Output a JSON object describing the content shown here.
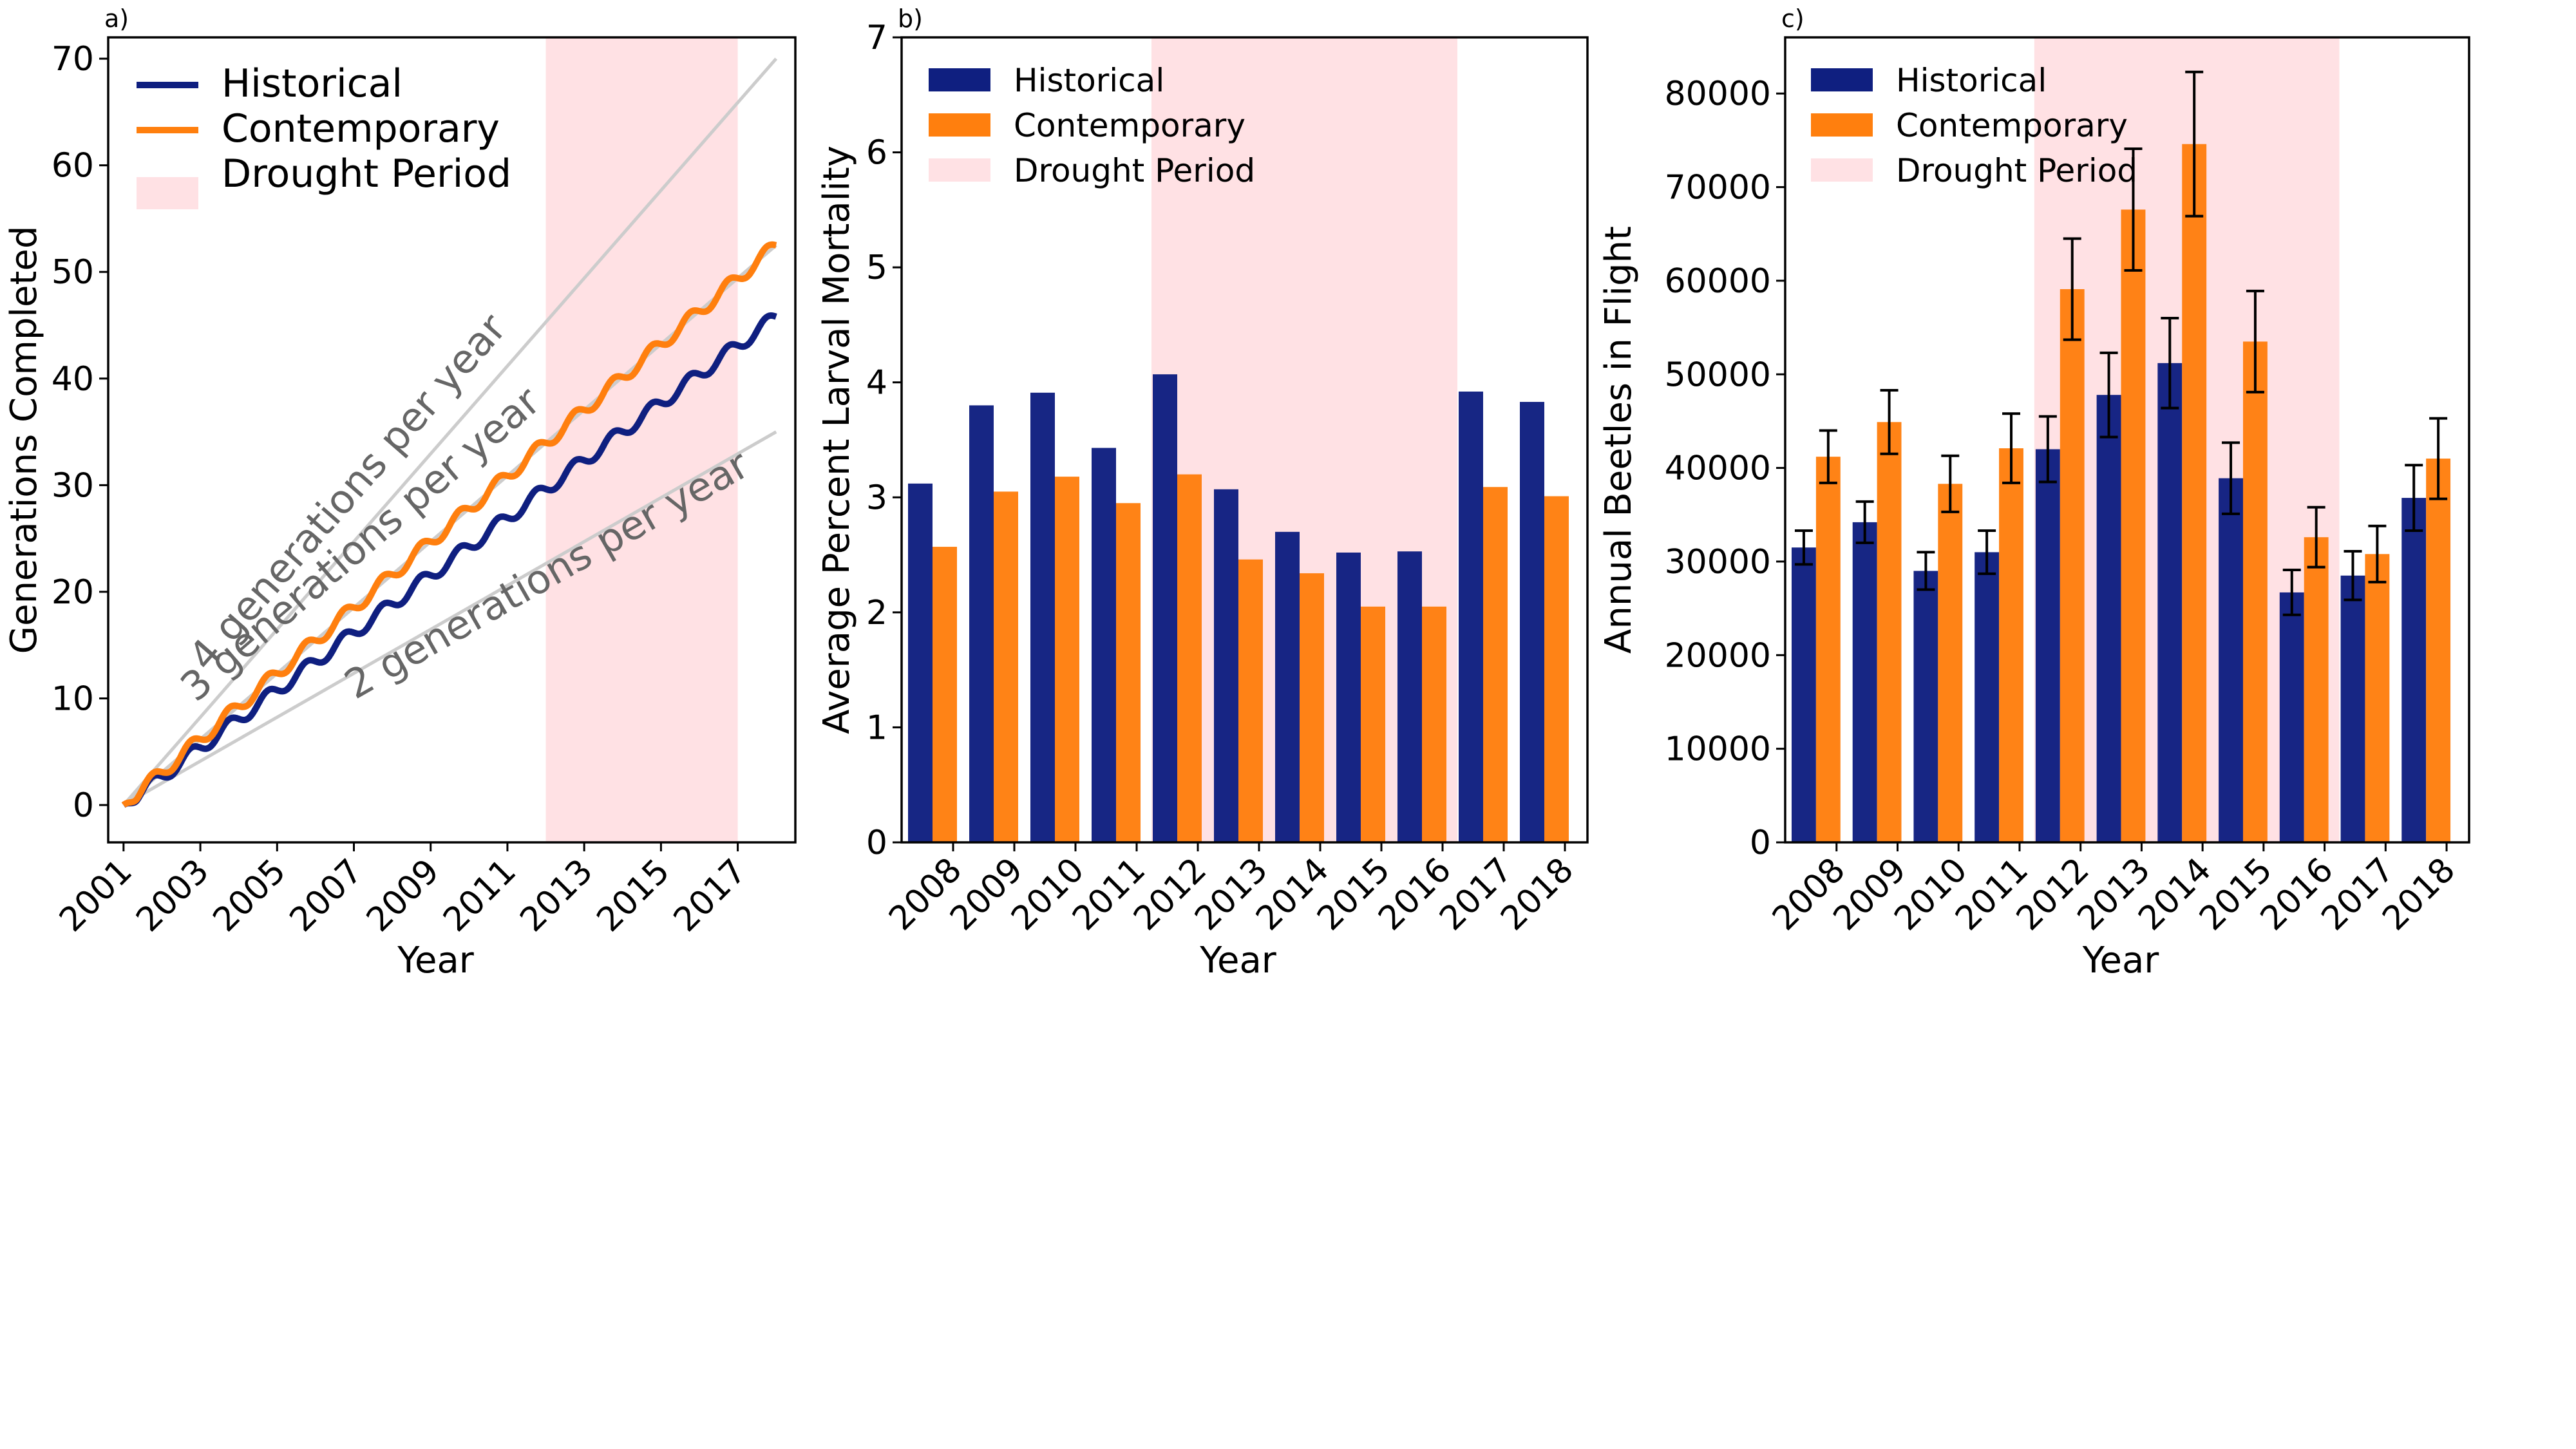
{
  "legend": {
    "historical": "Historical",
    "contemporary": "Contemporary",
    "drought": "Drought Period"
  },
  "colors": {
    "historical": "#0f1f80",
    "contemporary": "#ff7f0e",
    "drought": "#ffe1e4",
    "guide": "#cccccc",
    "guide_text": "#666666",
    "error_bar": "#000000"
  },
  "chart_data": [
    {
      "panel_label": "a)",
      "type": "line",
      "xlabel": "Year",
      "ylabel": "Generations Completed",
      "xlim": [
        2000.6,
        2018.5
      ],
      "ylim": [
        -3.5,
        72
      ],
      "xticks": [
        "2001",
        "2003",
        "2005",
        "2007",
        "2009",
        "2011",
        "2013",
        "2015",
        "2017"
      ],
      "yticks": [
        0,
        10,
        20,
        30,
        40,
        50,
        60,
        70
      ],
      "drought_period": [
        2012,
        2017
      ],
      "legend_position": "top-left",
      "series": [
        {
          "name": "Historical",
          "start_year": 2001,
          "end_year": 2018,
          "rate": 2.7,
          "start": 0,
          "end": 45.8
        },
        {
          "name": "Contemporary",
          "start_year": 2001,
          "end_year": 2018,
          "rate": 3.1,
          "start": 0,
          "end": 52.5
        }
      ],
      "reference_lines": [
        {
          "label": "4 generations per year",
          "rate": 4,
          "x": [
            2001,
            2018
          ],
          "y": [
            0,
            70
          ]
        },
        {
          "label": "3 generations per year",
          "rate": 3,
          "x": [
            2001,
            2018
          ],
          "y": [
            0,
            52.5
          ]
        },
        {
          "label": "2 generations per year",
          "rate": 2,
          "x": [
            2001,
            2018
          ],
          "y": [
            0,
            35
          ]
        }
      ]
    },
    {
      "panel_label": "b)",
      "type": "bar",
      "xlabel": "Year",
      "ylabel": "Average Percent Larval Mortality",
      "ylim": [
        0,
        7
      ],
      "yticks": [
        0,
        1,
        2,
        3,
        4,
        5,
        6,
        7
      ],
      "categories": [
        "2008",
        "2009",
        "2010",
        "2011",
        "2012",
        "2013",
        "2014",
        "2015",
        "2016",
        "2017",
        "2018"
      ],
      "drought_period": [
        "2012",
        "2016"
      ],
      "legend_position": "top-left",
      "series": [
        {
          "name": "Historical",
          "values": [
            3.12,
            3.8,
            3.91,
            3.43,
            4.07,
            3.07,
            2.7,
            2.52,
            2.53,
            3.92,
            3.83
          ]
        },
        {
          "name": "Contemporary",
          "values": [
            2.57,
            3.05,
            3.18,
            2.95,
            3.2,
            2.46,
            2.34,
            2.05,
            2.05,
            3.09,
            3.01
          ]
        }
      ]
    },
    {
      "panel_label": "c)",
      "type": "bar",
      "xlabel": "Year",
      "ylabel": "Annual Beetles in Flight",
      "ylim": [
        0,
        86000
      ],
      "yticks": [
        0,
        10000,
        20000,
        30000,
        40000,
        50000,
        60000,
        70000,
        80000
      ],
      "categories": [
        "2008",
        "2009",
        "2010",
        "2011",
        "2012",
        "2013",
        "2014",
        "2015",
        "2016",
        "2017",
        "2018"
      ],
      "drought_period": [
        "2012",
        "2016"
      ],
      "legend_position": "top-left",
      "series": [
        {
          "name": "Historical",
          "values": [
            31500,
            34200,
            29000,
            31000,
            42000,
            47800,
            51200,
            38900,
            26700,
            28500,
            36800
          ],
          "errors": [
            1800,
            2200,
            2000,
            2300,
            3500,
            4500,
            4800,
            3800,
            2400,
            2600,
            3500
          ]
        },
        {
          "name": "Contemporary",
          "values": [
            41200,
            44900,
            38300,
            42100,
            59100,
            67600,
            74600,
            53500,
            32600,
            30800,
            41000
          ],
          "errors": [
            2800,
            3400,
            3000,
            3700,
            5400,
            6500,
            7700,
            5400,
            3200,
            3000,
            4300
          ]
        }
      ]
    }
  ]
}
